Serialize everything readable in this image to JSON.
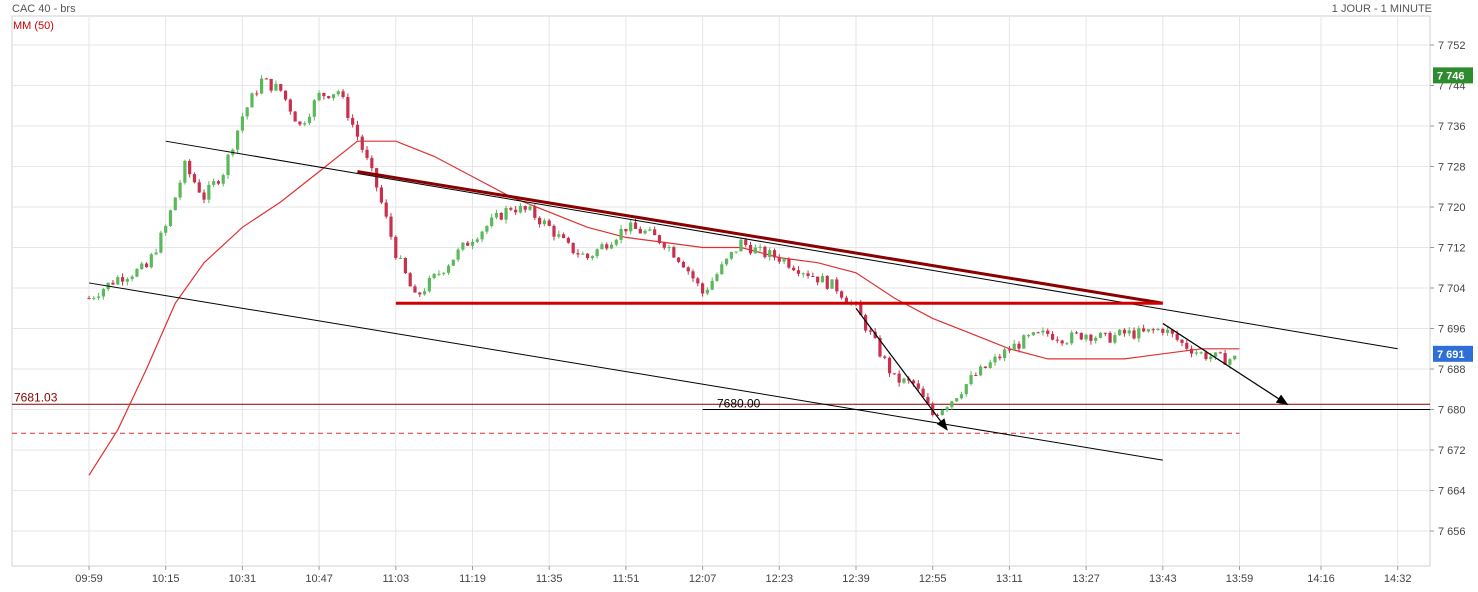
{
  "header": {
    "title": "CAC 40 - brs",
    "indicator": "MM (50)",
    "timeframe": "1 JOUR - 1 MINUTE"
  },
  "colors": {
    "up": "#5cb85c",
    "down": "#c9304e",
    "ma": "#e03030",
    "trend": "#000000",
    "resistance": "#d00000",
    "support_line": "#8b0000",
    "badge_high": "#2e8b2e",
    "badge_last": "#2d6fd6",
    "grid": "#e6e6e6"
  },
  "chart_data": {
    "type": "candlestick",
    "title": "CAC 40 - brs",
    "indicator": "MM (50)",
    "timeframe": "1 JOUR - 1 MINUTE",
    "x_ticks": [
      "09:59",
      "10:15",
      "10:31",
      "10:47",
      "11:03",
      "11:19",
      "11:35",
      "11:51",
      "12:07",
      "12:23",
      "12:39",
      "12:55",
      "13:11",
      "13:27",
      "13:43",
      "13:59",
      "14:16",
      "14:32"
    ],
    "y_ticks": [
      7752,
      7744,
      7736,
      7728,
      7720,
      7712,
      7704,
      7696,
      7688,
      7680,
      7672,
      7664,
      7656
    ],
    "ylim": [
      7651,
      7759
    ],
    "grid": true,
    "badges": [
      {
        "label": "7 746",
        "value": 7746,
        "color": "high"
      },
      {
        "label": "7 691",
        "value": 7691,
        "color": "last"
      }
    ],
    "horizontal_levels": [
      {
        "label": "7681.03",
        "value": 7681.03,
        "style": "solid-darkred"
      },
      {
        "label": "7680.00",
        "value": 7680.0,
        "style": "solid-black"
      },
      {
        "label": "",
        "value": 7675.3,
        "style": "dashed-red"
      }
    ],
    "trendlines": [
      {
        "name": "upper-channel",
        "from": [
          "10:15",
          7733
        ],
        "to": [
          "14:32",
          7692
        ]
      },
      {
        "name": "lower-channel",
        "from": [
          "09:59",
          7705
        ],
        "to": [
          "13:43",
          7670
        ]
      },
      {
        "name": "descending-resistance",
        "from": [
          "10:55",
          7727
        ],
        "to": [
          "13:43",
          7701
        ]
      },
      {
        "name": "horizontal-support",
        "from": [
          "11:03",
          7701
        ],
        "to": [
          "13:43",
          7701
        ]
      }
    ],
    "arrows": [
      {
        "from": [
          "12:39",
          7700
        ],
        "to": [
          "12:58",
          7676
        ]
      },
      {
        "from": [
          "13:43",
          7697
        ],
        "to": [
          "14:09",
          7681
        ]
      }
    ],
    "ma_points": [
      [
        "09:59",
        7667
      ],
      [
        "10:05",
        7676
      ],
      [
        "10:11",
        7688
      ],
      [
        "10:17",
        7701
      ],
      [
        "10:23",
        7709
      ],
      [
        "10:31",
        7716
      ],
      [
        "10:39",
        7721
      ],
      [
        "10:47",
        7727
      ],
      [
        "10:55",
        7733
      ],
      [
        "11:03",
        7733
      ],
      [
        "11:11",
        7730
      ],
      [
        "11:19",
        7726
      ],
      [
        "11:27",
        7722
      ],
      [
        "11:35",
        7719
      ],
      [
        "11:43",
        7716
      ],
      [
        "11:51",
        7714
      ],
      [
        "11:59",
        7713
      ],
      [
        "12:07",
        7712
      ],
      [
        "12:15",
        7712
      ],
      [
        "12:23",
        7710
      ],
      [
        "12:31",
        7709
      ],
      [
        "12:39",
        7707
      ],
      [
        "12:47",
        7702
      ],
      [
        "12:55",
        7698
      ],
      [
        "13:03",
        7695
      ],
      [
        "13:11",
        7692
      ],
      [
        "13:19",
        7690
      ],
      [
        "13:27",
        7690
      ],
      [
        "13:35",
        7690
      ],
      [
        "13:43",
        7691
      ],
      [
        "13:51",
        7692
      ],
      [
        "13:59",
        7692
      ]
    ],
    "close_path": [
      [
        "09:59",
        7702
      ],
      [
        "10:05",
        7706
      ],
      [
        "10:11",
        7708
      ],
      [
        "10:15",
        7716
      ],
      [
        "10:19",
        7728
      ],
      [
        "10:23",
        7722
      ],
      [
        "10:27",
        7727
      ],
      [
        "10:31",
        7738
      ],
      [
        "10:35",
        7745
      ],
      [
        "10:39",
        7743
      ],
      [
        "10:43",
        7736
      ],
      [
        "10:47",
        7742
      ],
      [
        "10:51",
        7743
      ],
      [
        "10:55",
        7734
      ],
      [
        "10:59",
        7724
      ],
      [
        "11:03",
        7711
      ],
      [
        "11:07",
        7702
      ],
      [
        "11:11",
        7706
      ],
      [
        "11:15",
        7710
      ],
      [
        "11:19",
        7714
      ],
      [
        "11:23",
        7717
      ],
      [
        "11:27",
        7720
      ],
      [
        "11:31",
        7719
      ],
      [
        "11:35",
        7716
      ],
      [
        "11:39",
        7712
      ],
      [
        "11:43",
        7710
      ],
      [
        "11:47",
        7713
      ],
      [
        "11:51",
        7716
      ],
      [
        "11:55",
        7715
      ],
      [
        "11:59",
        7713
      ],
      [
        "12:03",
        7709
      ],
      [
        "12:07",
        7703
      ],
      [
        "12:11",
        7708
      ],
      [
        "12:15",
        7713
      ],
      [
        "12:19",
        7711
      ],
      [
        "12:23",
        7710
      ],
      [
        "12:27",
        7708
      ],
      [
        "12:31",
        7706
      ],
      [
        "12:35",
        7704
      ],
      [
        "12:39",
        7700
      ],
      [
        "12:43",
        7693
      ],
      [
        "12:47",
        7686
      ],
      [
        "12:51",
        7685
      ],
      [
        "12:55",
        7679
      ],
      [
        "12:59",
        7682
      ],
      [
        "13:03",
        7686
      ],
      [
        "13:07",
        7689
      ],
      [
        "13:11",
        7692
      ],
      [
        "13:15",
        7694
      ],
      [
        "13:19",
        7695
      ],
      [
        "13:23",
        7694
      ],
      [
        "13:27",
        7695
      ],
      [
        "13:31",
        7694
      ],
      [
        "13:35",
        7695
      ],
      [
        "13:39",
        7695
      ],
      [
        "13:43",
        7696
      ],
      [
        "13:47",
        7693
      ],
      [
        "13:51",
        7691
      ],
      [
        "13:55",
        7690
      ],
      [
        "13:59",
        7690
      ]
    ]
  }
}
